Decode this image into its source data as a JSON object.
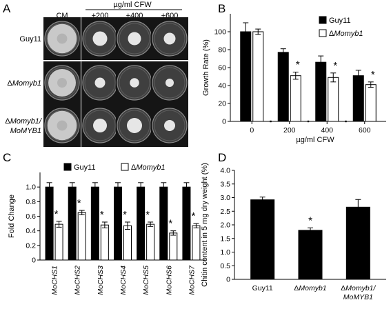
{
  "panels": {
    "a": {
      "letter": "A",
      "unit_label": "µg/ml CFW",
      "columns": [
        "CM",
        "+200",
        "+400",
        "+600"
      ],
      "rows": [
        {
          "label_lines": [
            "Guy11"
          ],
          "italic": false,
          "colony": [
            0.85,
            0.42,
            0.38,
            0.34
          ]
        },
        {
          "label_lines": [
            "ΔMomyb1"
          ],
          "italic": true,
          "colony": [
            0.8,
            0.3,
            0.27,
            0.24
          ]
        },
        {
          "label_lines": [
            "ΔMomyb1/",
            "MoMYB1"
          ],
          "italic": true,
          "colony": [
            0.85,
            0.4,
            0.44,
            0.32
          ]
        }
      ]
    },
    "b": {
      "letter": "B"
    },
    "c": {
      "letter": "C"
    },
    "d": {
      "letter": "D"
    }
  },
  "chart_data": [
    {
      "id": "B",
      "type": "bar",
      "ylabel": "Growth Rate (%)",
      "xlabel": "µg/ml CFW",
      "categories": [
        "0",
        "200",
        "400",
        "600"
      ],
      "ylim": [
        0,
        120
      ],
      "yticks": [
        0,
        20,
        40,
        60,
        80,
        100
      ],
      "legend": "top-right",
      "series": [
        {
          "name": "Guy11",
          "fill": "#000000",
          "values": [
            100,
            77,
            66,
            51
          ],
          "errors": [
            10,
            4,
            7,
            6
          ]
        },
        {
          "name": "ΔMomyb1",
          "fill": "#ffffff",
          "values": [
            100,
            51,
            49,
            41
          ],
          "errors": [
            3,
            4,
            5,
            3
          ]
        }
      ],
      "significant": [
        false,
        true,
        true,
        true
      ],
      "asterisk": "*"
    },
    {
      "id": "C",
      "type": "bar",
      "ylabel": "Fold Change",
      "categories": [
        "MoCHS1",
        "MoCHS2",
        "MoCHS3",
        "MoCHS4",
        "MoCHS5",
        "MoCHS6",
        "MoCHS7"
      ],
      "ylim": [
        0,
        1.2
      ],
      "yticks": [
        0,
        0.2,
        0.4,
        0.6,
        0.8,
        1.0
      ],
      "ytick_labels": [
        "0",
        "0.2",
        "0.4",
        "0.6",
        "0.8",
        "1.0"
      ],
      "legend": "top",
      "series": [
        {
          "name": "Guy11",
          "fill": "#000000",
          "values": [
            1.0,
            1.0,
            1.0,
            1.0,
            1.0,
            1.0,
            1.0
          ],
          "errors": [
            0.06,
            0.06,
            0.06,
            0.06,
            0.06,
            0.06,
            0.06
          ]
        },
        {
          "name": "ΔMomyb1",
          "fill": "#ffffff",
          "values": [
            0.49,
            0.65,
            0.48,
            0.47,
            0.49,
            0.37,
            0.47
          ],
          "errors": [
            0.04,
            0.03,
            0.04,
            0.05,
            0.03,
            0.03,
            0.03
          ]
        }
      ],
      "significant": [
        true,
        true,
        true,
        true,
        true,
        true,
        true
      ],
      "asterisk": "*"
    },
    {
      "id": "D",
      "type": "bar",
      "ylabel": "Chitin content  in 5 mg dry weight (%)",
      "categories": [
        "Guy11",
        "ΔMomyb1",
        "ΔMomyb1/|MoMYB1"
      ],
      "ylim": [
        0,
        4.0
      ],
      "yticks": [
        0,
        0.5,
        1.0,
        1.5,
        2.0,
        2.5,
        3.0,
        3.5,
        4.0
      ],
      "ytick_labels": [
        "0",
        "0.5",
        "1.0",
        "1.5",
        "2.0",
        "2.5",
        "3.0",
        "3.5",
        "4.0"
      ],
      "series": [
        {
          "name": "",
          "fill": "#000000",
          "values": [
            2.92,
            1.8,
            2.65
          ],
          "errors": [
            0.1,
            0.09,
            0.28
          ]
        }
      ],
      "significant": [
        false,
        true,
        false
      ],
      "asterisk": "*"
    }
  ]
}
